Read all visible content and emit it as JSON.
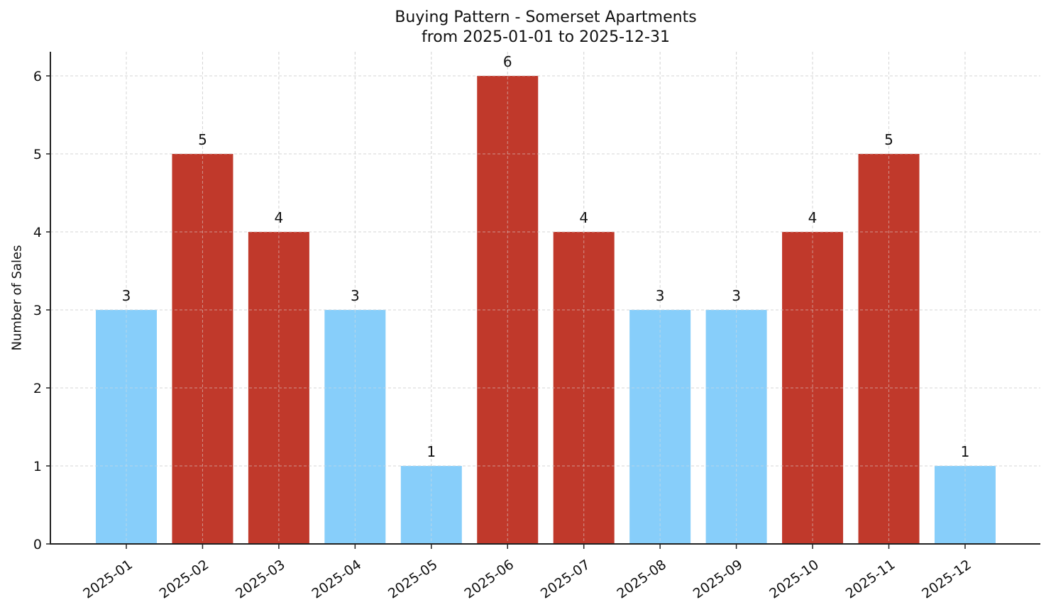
{
  "chart_data": {
    "type": "bar",
    "title": "Buying Pattern - Somerset Apartments",
    "subtitle": "from 2025-01-01 to 2025-12-31",
    "xlabel": "",
    "ylabel": "Number of Sales",
    "categories": [
      "2025-01",
      "2025-02",
      "2025-03",
      "2025-04",
      "2025-05",
      "2025-06",
      "2025-07",
      "2025-08",
      "2025-09",
      "2025-10",
      "2025-11",
      "2025-12"
    ],
    "values": [
      3,
      5,
      4,
      3,
      1,
      6,
      4,
      3,
      3,
      4,
      5,
      1
    ],
    "bar_colors": [
      "#87CEFA",
      "#C0392B",
      "#C0392B",
      "#87CEFA",
      "#87CEFA",
      "#C0392B",
      "#C0392B",
      "#87CEFA",
      "#87CEFA",
      "#C0392B",
      "#C0392B",
      "#87CEFA"
    ],
    "color_legend": {
      "high": "#C0392B",
      "low": "#87CEFA",
      "threshold_note": "values >= 4 shown in red"
    },
    "yticks": [
      0,
      1,
      2,
      3,
      4,
      5,
      6
    ],
    "ylim": [
      0,
      6.3
    ],
    "grid": true,
    "grid_style": "dashed",
    "legend": "none",
    "data_labels": true,
    "xtick_rotation": 35
  }
}
